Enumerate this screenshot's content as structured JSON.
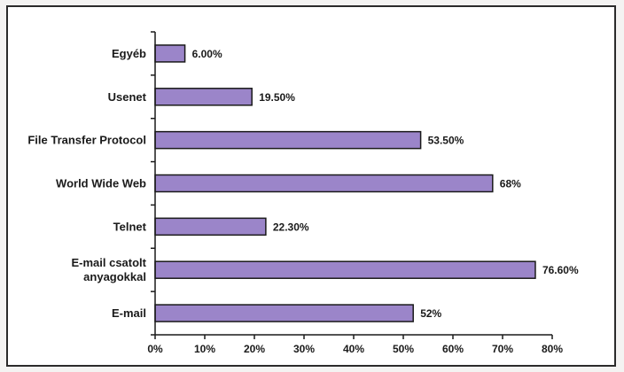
{
  "chart_data": {
    "type": "bar",
    "orientation": "horizontal",
    "categories": [
      "Egyéb",
      "Usenet",
      "File Transfer Protocol",
      "World Wide Web",
      "Telnet",
      "E-mail csatolt anyagokkal",
      "E-mail"
    ],
    "category_label_lines": [
      [
        "Egyéb"
      ],
      [
        "Usenet"
      ],
      [
        "File Transfer Protocol"
      ],
      [
        "World Wide Web"
      ],
      [
        "Telnet"
      ],
      [
        "E-mail csatolt",
        "anyagokkal"
      ],
      [
        "E-mail"
      ]
    ],
    "values": [
      6.0,
      19.5,
      53.5,
      68,
      22.3,
      76.6,
      52
    ],
    "value_labels": [
      "6.00%",
      "19.50%",
      "53.50%",
      "68%",
      "22.30%",
      "76.60%",
      "52%"
    ],
    "x_ticks": [
      "0%",
      "10%",
      "20%",
      "30%",
      "40%",
      "50%",
      "60%",
      "70%",
      "80%"
    ],
    "xlim": [
      0,
      80
    ],
    "grid": false,
    "legend": "none",
    "bar_color": "#9b85c9",
    "bar_edge_color": "#1a1a1a"
  }
}
